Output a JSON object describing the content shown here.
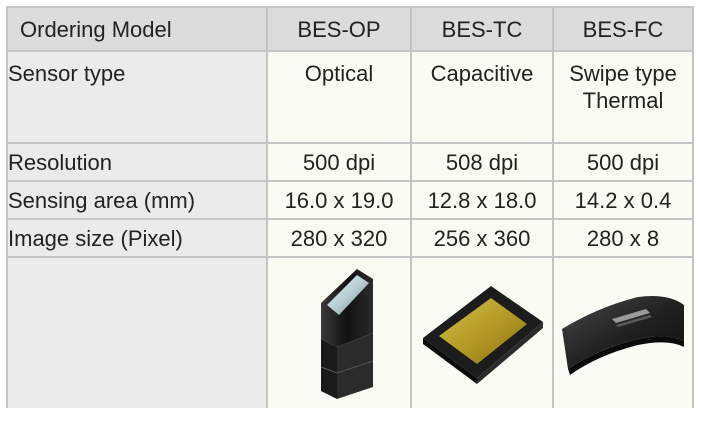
{
  "header": {
    "label": "Ordering Model",
    "models": [
      "BES-OP",
      "BES-TC",
      "BES-FC"
    ]
  },
  "rows": {
    "sensor_type": {
      "label": "Sensor type",
      "values": [
        "Optical",
        "Capacitive",
        "Swipe type\nThermal"
      ]
    },
    "resolution": {
      "label": "Resolution",
      "values": [
        "500 dpi",
        "508 dpi",
        "500 dpi"
      ]
    },
    "sensing_area": {
      "label": "Sensing area (mm)",
      "values": [
        "16.0 x 19.0",
        "12.8 x 18.0",
        "14.2 x 0.4"
      ]
    },
    "image_size": {
      "label": "Image size (Pixel)",
      "values": [
        "280 x 320",
        "256 x 360",
        "280 x 8"
      ]
    }
  },
  "photos": {
    "op": "optical-sensor-module-image",
    "tc": "capacitive-sensor-chip-image",
    "fc": "swipe-thermal-sensor-image"
  },
  "colors": {
    "header_bg": "#dcdcdc",
    "label_bg": "#ebebeb",
    "value_bg": "#fbfbf5",
    "border": "#c4c4c4"
  }
}
